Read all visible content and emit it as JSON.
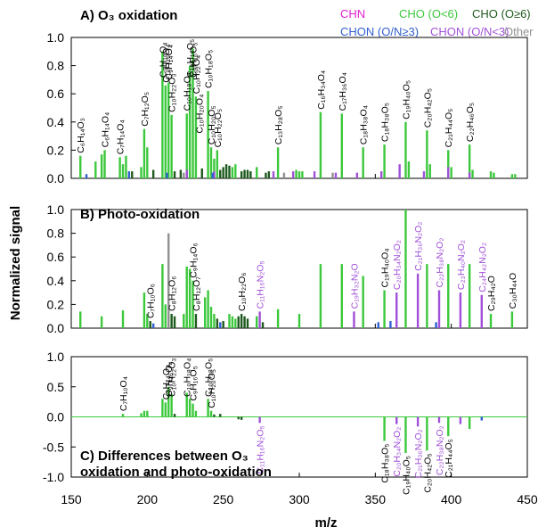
{
  "figure": {
    "ylabel": "Normalized signal",
    "xlabel": "m/z",
    "xlim": [
      150,
      450
    ],
    "xticks": [
      150,
      200,
      250,
      300,
      350,
      400,
      450
    ]
  },
  "legend": [
    {
      "label": "CHN",
      "color": "#e020d0"
    },
    {
      "label": "CHO (O<6)",
      "color": "#3cc83c"
    },
    {
      "label": "CHO (O≥6)",
      "color": "#1e5a1e"
    },
    {
      "label": "CHON (O/N≥3)",
      "color": "#2f5fd0"
    },
    {
      "label": "CHON (O/N<3)",
      "color": "#a050d8"
    },
    {
      "label": "Other",
      "color": "#909090"
    }
  ],
  "chart_data": [
    {
      "type": "bar",
      "title": "A) O₃ oxidation",
      "ylim": [
        0,
        1.0
      ],
      "yticks": [
        0,
        0.2,
        0.4,
        0.6,
        0.8,
        1.0
      ],
      "series": [
        {
          "name": "CHO (O<6)",
          "x": [
            156,
            166,
            170,
            172,
            182,
            184,
            186,
            196,
            198,
            200,
            210,
            212,
            214,
            216,
            226,
            228,
            230,
            232,
            240,
            242,
            244,
            246,
            256,
            258,
            272,
            286,
            298,
            300,
            302,
            314,
            328,
            342,
            356,
            370,
            372,
            384,
            386,
            398,
            400,
            412,
            414,
            426,
            428,
            440,
            442
          ],
          "values": [
            0.16,
            0.12,
            0.17,
            0.2,
            0.15,
            0.1,
            0.16,
            0.08,
            0.35,
            0.22,
            0.9,
            0.66,
            0.68,
            0.45,
            0.46,
            0.8,
            0.92,
            0.58,
            0.62,
            0.22,
            0.14,
            0.2,
            0.08,
            0.1,
            0.08,
            0.22,
            0.06,
            0.05,
            0.05,
            0.47,
            0.46,
            0.22,
            0.24,
            0.4,
            0.12,
            0.34,
            0.1,
            0.2,
            0.08,
            0.24,
            0.06,
            0.05,
            0.04,
            0.03,
            0.03
          ]
        },
        {
          "name": "CHO (O≥6)",
          "x": [
            190,
            204,
            218,
            222,
            236,
            248,
            250,
            252,
            254,
            262,
            264,
            266,
            268,
            278,
            280
          ],
          "values": [
            0.05,
            0.06,
            0.05,
            0.06,
            0.07,
            0.06,
            0.08,
            0.1,
            0.09,
            0.05,
            0.06,
            0.06,
            0.05,
            0.04,
            0.05
          ]
        },
        {
          "name": "CHON (O/N<3)",
          "x": [
            226,
            244,
            283,
            296,
            310,
            324,
            338,
            354,
            366,
            382,
            398,
            412
          ],
          "values": [
            0.06,
            0.05,
            0.05,
            0.05,
            0.05,
            0.04,
            0.04,
            0.05,
            0.1,
            0.05,
            0.08,
            0.04
          ]
        },
        {
          "name": "CHON (O/N≥3)",
          "x": [
            160,
            188,
            213,
            243
          ],
          "values": [
            0.03,
            0.05,
            0.04,
            0.04
          ]
        },
        {
          "name": "Other",
          "x": [
            224,
            290,
            322
          ],
          "values": [
            0.04,
            0.04,
            0.04
          ]
        }
      ],
      "annotations": [
        {
          "label": "C₆H₁₄O₃",
          "x": 156
        },
        {
          "label": "C₆H₁₄O₄",
          "x": 172
        },
        {
          "label": "C₇H₁₄O₄",
          "x": 182
        },
        {
          "label": "C₇H₁₂O₅",
          "x": 198
        },
        {
          "label": "C₉H₁₆O₄",
          "x": 210
        },
        {
          "label": "C₉H₁₄O₄",
          "x": 214
        },
        {
          "label": "C₁₀H₂₂O₃",
          "x": 216
        },
        {
          "label": "C₁₀H₁₈O₄",
          "x": 226
        },
        {
          "label": "C₉H₁₆O₅",
          "x": 230
        },
        {
          "label": "C₁₀H₂₂O₄",
          "x": 232
        },
        {
          "label": "C₁₀H₂₀O₄",
          "x": 234
        },
        {
          "label": "C₁₀H₁₈O₅",
          "x": 240
        },
        {
          "label": "C₁₀H₂₀O₅",
          "x": 242
        },
        {
          "label": "C₁₀H₂₂O₅",
          "x": 246
        },
        {
          "label": "C₁₃H₂₈O₅",
          "x": 286
        },
        {
          "label": "C₁₆H₃₄O₄",
          "x": 314
        },
        {
          "label": "C₁₇H₃₆O₄",
          "x": 328
        },
        {
          "label": "C₁₈H₃₈O₄",
          "x": 342
        },
        {
          "label": "C₁₈H₃₈O₅",
          "x": 356
        },
        {
          "label": "C₁₉H₄₀O₅",
          "x": 370
        },
        {
          "label": "C₂₀H₄₂O₅",
          "x": 384
        },
        {
          "label": "C₂₁H₄₄O₅",
          "x": 398
        },
        {
          "label": "C₂₂H₄₆O₅",
          "x": 412
        },
        {
          "label": "C₁₀H₁₆O₄",
          "x": 212
        },
        {
          "label": "C₁₀H₁₆O₅",
          "x": 228
        }
      ]
    },
    {
      "type": "bar",
      "title": "B) Photo-oxidation",
      "ylim": [
        0,
        1.0
      ],
      "yticks": [
        0,
        0.2,
        0.4,
        0.6,
        0.8,
        1.0
      ],
      "series": [
        {
          "name": "CHO (O<6)",
          "x": [
            156,
            170,
            184,
            198,
            200,
            210,
            212,
            214,
            224,
            226,
            228,
            230,
            238,
            240,
            242,
            244,
            254,
            256,
            258,
            272,
            286,
            300,
            314,
            328,
            342,
            356,
            370,
            384,
            398,
            412,
            426,
            440
          ],
          "values": [
            0.14,
            0.1,
            0.15,
            0.3,
            0.12,
            0.54,
            0.2,
            0.14,
            0.12,
            0.52,
            0.5,
            0.4,
            0.26,
            0.32,
            0.18,
            0.12,
            0.12,
            0.1,
            0.08,
            0.1,
            0.16,
            0.12,
            0.54,
            0.54,
            0.44,
            0.32,
            1.0,
            0.54,
            0.54,
            0.54,
            0.12,
            0.14
          ]
        },
        {
          "name": "CHO (O≥6)",
          "x": [
            202,
            216,
            218,
            232,
            246,
            250,
            260,
            262,
            264,
            266,
            276
          ],
          "values": [
            0.06,
            0.12,
            0.1,
            0.12,
            0.08,
            0.06,
            0.1,
            0.12,
            0.1,
            0.08,
            0.05
          ]
        },
        {
          "name": "CHON (O/N<3)",
          "x": [
            274,
            336,
            364,
            378,
            392,
            406,
            420
          ],
          "values": [
            0.14,
            0.14,
            0.3,
            0.46,
            0.32,
            0.3,
            0.28
          ]
        },
        {
          "name": "CHON (O/N≥3)",
          "x": [
            204,
            248,
            352,
            360,
            390
          ],
          "values": [
            0.04,
            0.05,
            0.05,
            0.06,
            0.05
          ]
        },
        {
          "name": "Other",
          "x": [
            214
          ],
          "values": [
            0.8
          ]
        }
      ],
      "annotations": [
        {
          "label": "C₇H₁₀O₆",
          "x": 202
        },
        {
          "label": "C₈H₁₂O₆",
          "x": 216
        },
        {
          "label": "C₉H₁₄O₆",
          "x": 230
        },
        {
          "label": "C₈H₁₂O₇",
          "x": 232
        },
        {
          "label": "C₁₀H₂₂O₆",
          "x": 262
        },
        {
          "label": "C₁₁H₁₆N₂O₅",
          "x": 274
        },
        {
          "label": "C₁₉H₃₂N₂O",
          "x": 336
        },
        {
          "label": "C₁₉H₄₀O₄",
          "x": 356
        },
        {
          "label": "C₂₀H₃₄N₂O₂",
          "x": 364
        },
        {
          "label": "C₂₁H₃₆N₂O₂",
          "x": 378
        },
        {
          "label": "C₂₂H₃₈N₂O₂",
          "x": 392
        },
        {
          "label": "C₂₃H₄₀N₂O₂",
          "x": 406
        },
        {
          "label": "C₂₄H₄₂N₂O₂",
          "x": 420
        },
        {
          "label": "C₂₉H₄₂O",
          "x": 426
        },
        {
          "label": "C₃₀H₄₄O",
          "x": 440
        }
      ]
    },
    {
      "type": "bar",
      "title": "C) Differences between O₃ oxidation and photo-oxidation",
      "ylim": [
        -1.0,
        1.0
      ],
      "yticks": [
        -1.0,
        -0.5,
        0.0,
        0.5,
        1.0
      ],
      "series": [
        {
          "name": "CHO (O<6)",
          "x": [
            184,
            196,
            198,
            200,
            210,
            212,
            214,
            216,
            226,
            228,
            230,
            232,
            240,
            242,
            356,
            370,
            384,
            398,
            412
          ],
          "values": [
            0.05,
            0.06,
            0.1,
            0.1,
            0.3,
            0.24,
            0.5,
            0.38,
            0.4,
            0.3,
            0.22,
            0.1,
            0.3,
            0.1,
            -0.4,
            -0.6,
            -0.56,
            -0.32,
            -0.2
          ]
        },
        {
          "name": "CHO (O≥6)",
          "x": [
            218,
            244,
            248,
            260,
            262
          ],
          "values": [
            0.05,
            0.04,
            0.05,
            -0.04,
            -0.05
          ]
        },
        {
          "name": "CHON (O/N<3)",
          "x": [
            274,
            364,
            378,
            392,
            406
          ],
          "values": [
            -0.1,
            -0.12,
            -0.16,
            -0.1,
            -0.12
          ]
        },
        {
          "name": "CHON (O/N≥3)",
          "x": [
            420
          ],
          "values": [
            -0.06
          ]
        }
      ],
      "annotations": [
        {
          "label": "C₇H₁₀O₄",
          "x": 184
        },
        {
          "label": "C₉H₁₄O₄",
          "x": 212
        },
        {
          "label": "C₉H₁₆O₄",
          "x": 214
        },
        {
          "label": "C₁₀H₂₂O₃",
          "x": 216
        },
        {
          "label": "C₁₀H₁₈O₄",
          "x": 226
        },
        {
          "label": "C₉H₁₆O₅",
          "x": 230
        },
        {
          "label": "C₁₀H₁₈O₅",
          "x": 240
        },
        {
          "label": "C₁₀H₂₀O₅",
          "x": 242
        },
        {
          "label": "C₁₁H₁₆N₂O₅",
          "x": 274
        },
        {
          "label": "C₂₀H₃₄N₂O₂",
          "x": 364
        },
        {
          "label": "C₂₁H₃₆N₂O₂",
          "x": 378
        },
        {
          "label": "C₂₂H₃₈N₂O₂",
          "x": 392
        },
        {
          "label": "C₁₈H₃₈O₅",
          "x": 356
        },
        {
          "label": "C₁₉H₄₀O₅",
          "x": 370
        },
        {
          "label": "C₂₀H₄₂O₅",
          "x": 384
        },
        {
          "label": "C₂₁H₄₄O₅",
          "x": 398
        }
      ]
    }
  ]
}
